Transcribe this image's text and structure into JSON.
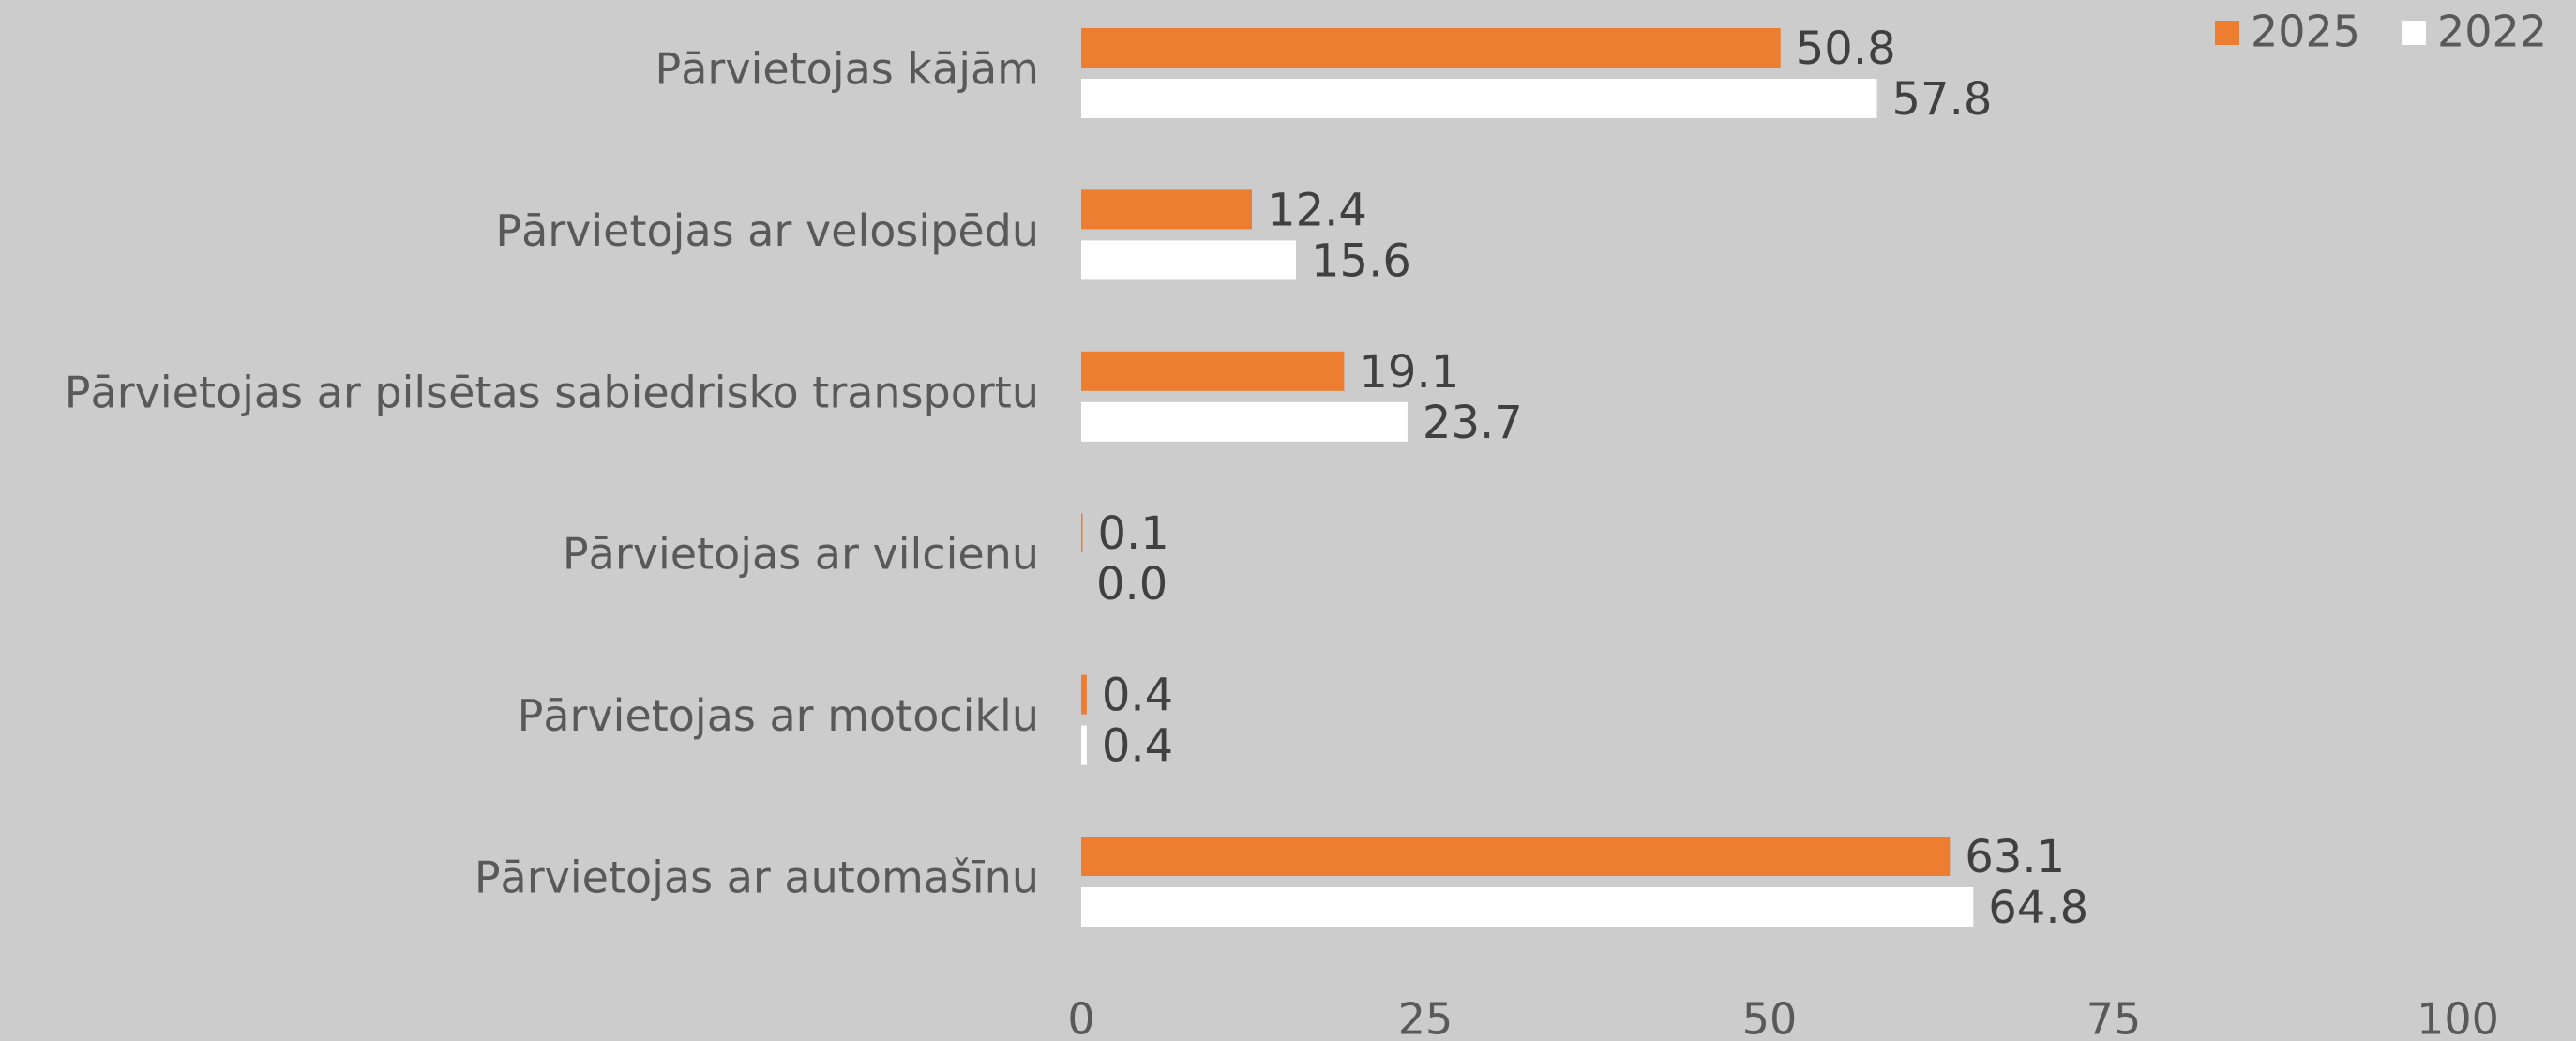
{
  "chart_data": {
    "type": "bar",
    "orientation": "horizontal",
    "categories": [
      "Pārvietojas kājām",
      "Pārvietojas ar velosipēdu",
      "Pārvietojas ar pilsētas sabiedrisko transportu",
      "Pārvietojas ar vilcienu",
      "Pārvietojas ar motociklu",
      "Pārvietojas ar automašīnu"
    ],
    "series": [
      {
        "name": "2025",
        "color": "#ed7d31",
        "values": [
          50.8,
          12.4,
          19.1,
          0.1,
          0.4,
          63.1
        ],
        "value_labels": [
          "50.8",
          "12.4",
          "19.1",
          "0.1",
          "0.4",
          "63.1"
        ]
      },
      {
        "name": "2022",
        "color": "#ffffff",
        "values": [
          57.8,
          15.6,
          23.7,
          0.0,
          0.4,
          64.8
        ],
        "value_labels": [
          "57.8",
          "15.6",
          "23.7",
          "0.0",
          "0.4",
          "64.8"
        ]
      }
    ],
    "xlim": [
      0,
      100
    ],
    "xticks": [
      0,
      25,
      50,
      75,
      100
    ],
    "grid": false,
    "legend": "top-right"
  }
}
